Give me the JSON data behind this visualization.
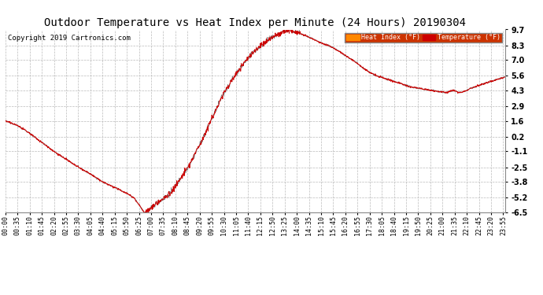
{
  "title": "Outdoor Temperature vs Heat Index per Minute (24 Hours) 20190304",
  "copyright": "Copyright 2019 Cartronics.com",
  "ylabel_right_ticks": [
    9.7,
    8.3,
    7.0,
    5.6,
    4.3,
    2.9,
    1.6,
    0.2,
    -1.1,
    -2.5,
    -3.8,
    -5.2,
    -6.5
  ],
  "ylim": [
    -6.5,
    9.7
  ],
  "legend_heat_index_label": "Heat Index (°F)",
  "legend_temp_label": "Temperature (°F)",
  "line_color_red": "#cc0000",
  "line_color_black": "#222222",
  "background_color": "#ffffff",
  "title_fontsize": 10,
  "copyright_fontsize": 6.5,
  "tick_fontsize": 6,
  "ytick_fontsize": 7,
  "grid_color": "#bbbbbb",
  "grid_linestyle": "--",
  "grid_linewidth": 0.5,
  "control_points": [
    [
      0,
      1.6
    ],
    [
      35,
      1.2
    ],
    [
      70,
      0.5
    ],
    [
      105,
      -0.3
    ],
    [
      140,
      -1.1
    ],
    [
      175,
      -1.8
    ],
    [
      210,
      -2.5
    ],
    [
      245,
      -3.1
    ],
    [
      280,
      -3.8
    ],
    [
      315,
      -4.3
    ],
    [
      350,
      -4.8
    ],
    [
      370,
      -5.2
    ],
    [
      385,
      -5.8
    ],
    [
      395,
      -6.3
    ],
    [
      385,
      -5.8
    ],
    [
      400,
      -6.5
    ],
    [
      415,
      -6.3
    ],
    [
      430,
      -5.8
    ],
    [
      445,
      -5.5
    ],
    [
      460,
      -5.2
    ],
    [
      475,
      -4.8
    ],
    [
      490,
      -4.2
    ],
    [
      505,
      -3.5
    ],
    [
      520,
      -2.8
    ],
    [
      535,
      -2.0
    ],
    [
      550,
      -1.1
    ],
    [
      565,
      -0.2
    ],
    [
      580,
      0.8
    ],
    [
      595,
      1.8
    ],
    [
      610,
      2.8
    ],
    [
      625,
      3.8
    ],
    [
      640,
      4.6
    ],
    [
      655,
      5.3
    ],
    [
      670,
      6.0
    ],
    [
      685,
      6.6
    ],
    [
      700,
      7.2
    ],
    [
      715,
      7.7
    ],
    [
      730,
      8.1
    ],
    [
      745,
      8.5
    ],
    [
      760,
      8.8
    ],
    [
      775,
      9.1
    ],
    [
      790,
      9.3
    ],
    [
      800,
      9.5
    ],
    [
      810,
      9.6
    ],
    [
      820,
      9.7
    ],
    [
      825,
      9.6
    ],
    [
      835,
      9.5
    ],
    [
      845,
      9.4
    ],
    [
      860,
      9.2
    ],
    [
      875,
      9.0
    ],
    [
      890,
      8.8
    ],
    [
      910,
      8.5
    ],
    [
      930,
      8.3
    ],
    [
      950,
      8.0
    ],
    [
      970,
      7.6
    ],
    [
      990,
      7.2
    ],
    [
      1010,
      6.8
    ],
    [
      1030,
      6.3
    ],
    [
      1050,
      5.9
    ],
    [
      1070,
      5.6
    ],
    [
      1090,
      5.4
    ],
    [
      1110,
      5.2
    ],
    [
      1130,
      5.0
    ],
    [
      1150,
      4.8
    ],
    [
      1170,
      4.6
    ],
    [
      1190,
      4.5
    ],
    [
      1210,
      4.4
    ],
    [
      1230,
      4.3
    ],
    [
      1250,
      4.2
    ],
    [
      1270,
      4.1
    ],
    [
      1280,
      4.2
    ],
    [
      1290,
      4.3
    ],
    [
      1300,
      4.2
    ],
    [
      1310,
      4.1
    ],
    [
      1320,
      4.2
    ],
    [
      1330,
      4.3
    ],
    [
      1340,
      4.5
    ],
    [
      1350,
      4.6
    ],
    [
      1360,
      4.7
    ],
    [
      1370,
      4.8
    ],
    [
      1380,
      4.9
    ],
    [
      1390,
      5.0
    ],
    [
      1400,
      5.1
    ],
    [
      1410,
      5.2
    ],
    [
      1420,
      5.3
    ],
    [
      1430,
      5.4
    ],
    [
      1440,
      5.5
    ]
  ],
  "noise_seed": 42,
  "x_tick_minutes": [
    0,
    35,
    70,
    105,
    140,
    175,
    210,
    245,
    280,
    315,
    350,
    385,
    420,
    455,
    490,
    525,
    560,
    595,
    630,
    665,
    700,
    735,
    770,
    805,
    840,
    875,
    910,
    945,
    980,
    1015,
    1050,
    1085,
    1120,
    1155,
    1190,
    1225,
    1260,
    1295,
    1330,
    1365,
    1400,
    1435
  ]
}
